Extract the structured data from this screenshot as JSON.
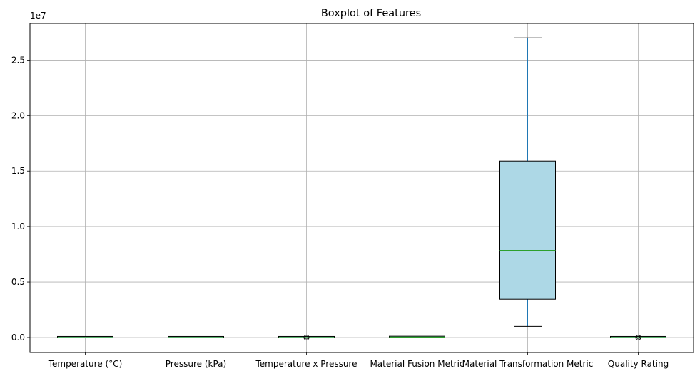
{
  "chart_data": {
    "type": "boxplot",
    "title": "Boxplot of Features",
    "y_offset_label": "1e7",
    "ylim": [
      -0.135,
      2.83
    ],
    "y_unit_scale": 10000000,
    "yticks": [
      0.0,
      0.5,
      1.0,
      1.5,
      2.0,
      2.5
    ],
    "ytick_labels": [
      "0.0",
      "0.5",
      "1.0",
      "1.5",
      "2.0",
      "2.5"
    ],
    "categories": [
      "Temperature (°C)",
      "Pressure (kPa)",
      "Temperature x Pressure",
      "Material Fusion Metric",
      "Material Transformation Metric",
      "Quality Rating"
    ],
    "boxes": [
      {
        "whisker_low": 0.0,
        "q1": 0.0,
        "median": 0.0,
        "q3": 0.0,
        "whisker_high": 0.0,
        "outliers": []
      },
      {
        "whisker_low": 0.0,
        "q1": 0.0,
        "median": 0.0,
        "q3": 0.0,
        "whisker_high": 0.0,
        "outliers": []
      },
      {
        "whisker_low": 0.0,
        "q1": 0.0,
        "median": 0.0,
        "q3": 0.0,
        "whisker_high": 0.0,
        "outliers": [
          0.0
        ]
      },
      {
        "whisker_low": 0.0,
        "q1": 0.002,
        "median": 0.004,
        "q3": 0.006,
        "whisker_high": 0.008,
        "outliers": []
      },
      {
        "whisker_low": 0.1,
        "q1": 0.345,
        "median": 0.785,
        "q3": 1.59,
        "whisker_high": 2.7,
        "outliers": []
      },
      {
        "whisker_low": 0.0,
        "q1": 0.0,
        "median": 0.0,
        "q3": 0.0,
        "whisker_high": 0.0,
        "outliers": [
          0.0
        ]
      }
    ],
    "colors": {
      "box_fill": "#add8e6",
      "box_edge": "#000000",
      "whisker": "#1f77b4",
      "median": "#2ca02c",
      "grid": "#b0b0b0"
    },
    "grid": true
  }
}
